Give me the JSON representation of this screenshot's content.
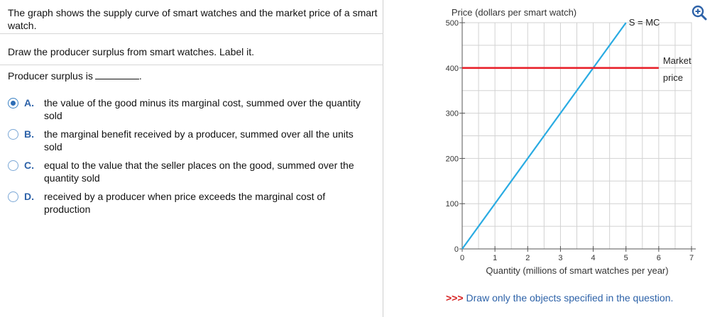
{
  "question": {
    "prompt": "The graph shows the supply curve of smart watches and the market price of a smart watch.",
    "instruction": "Draw the producer surplus from smart watches. Label it.",
    "stem": "Producer surplus is",
    "stem_end": ".",
    "options": [
      {
        "letter": "A.",
        "text": "the value of the good minus its marginal cost, summed over the quantity sold",
        "selected": true
      },
      {
        "letter": "B.",
        "text": "the marginal benefit received by a producer, summed over all the units sold",
        "selected": false
      },
      {
        "letter": "C.",
        "text": "equal to the value that the seller places on the good, summed over the quantity sold",
        "selected": false
      },
      {
        "letter": "D.",
        "text": "received by a producer when price exceeds the marginal cost of production",
        "selected": false
      }
    ]
  },
  "chart_data": {
    "type": "line",
    "ylabel": "Price (dollars per smart watch)",
    "xlabel": "Quantity (millions of smart watches per year)",
    "xlim": [
      0,
      7
    ],
    "ylim": [
      0,
      500
    ],
    "x_ticks": [
      "0",
      "1",
      "2",
      "3",
      "4",
      "5",
      "6",
      "7"
    ],
    "y_ticks": [
      "0",
      "100",
      "200",
      "300",
      "400",
      "500"
    ],
    "x_tick_values": [
      0,
      1,
      2,
      3,
      4,
      5,
      6,
      7
    ],
    "y_tick_values": [
      0,
      100,
      200,
      300,
      400,
      500
    ],
    "grid": true,
    "series": [
      {
        "name": "S = MC",
        "x": [
          0,
          5
        ],
        "y": [
          0,
          500
        ],
        "color": "#29abe2"
      },
      {
        "name": "Market price",
        "x": [
          0,
          6
        ],
        "y": [
          400,
          400
        ],
        "color": "#e8202a"
      }
    ],
    "annotations": {
      "supply_label": "S = MC",
      "price_label_line1": "Market",
      "price_label_line2": "price"
    }
  },
  "footer": {
    "arrows": ">>>",
    "note": "Draw only the objects specified in the question."
  },
  "icons": {
    "zoom": "zoom-in-icon",
    "zoom_color": "#2d62a8"
  }
}
